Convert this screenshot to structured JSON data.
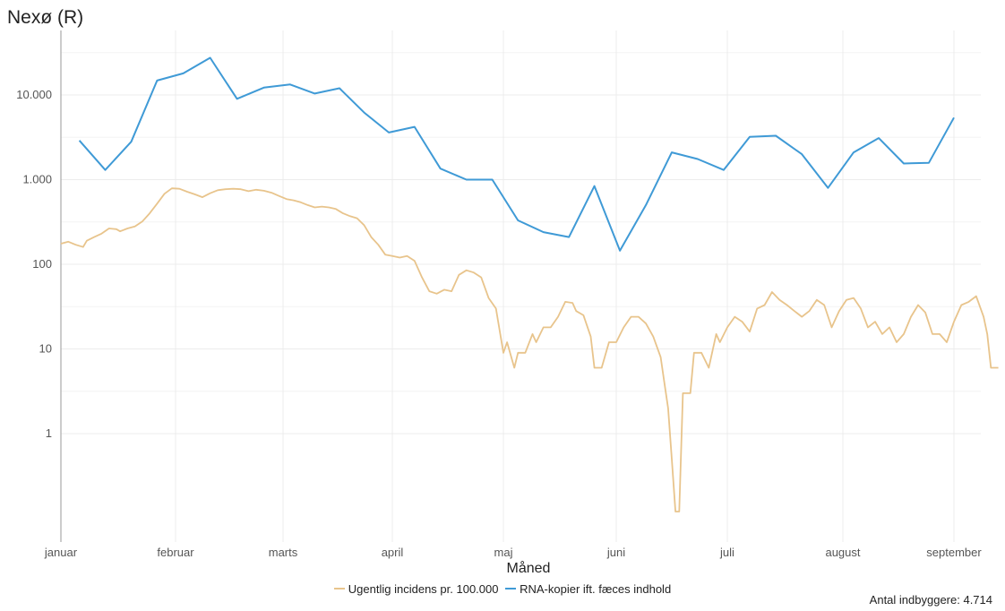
{
  "header": {
    "title": "Nexø (R)"
  },
  "footer": {
    "population": "Antal indbyggere: 4.714"
  },
  "colors": {
    "incidence": "#e8c48c",
    "rna": "#3f9ad6",
    "grid": "#ececec",
    "axis": "#9a9a9a"
  },
  "chart_data": {
    "type": "line",
    "title": "Nexø (R)",
    "xlabel": "Måned",
    "ylabel": "",
    "yscale": "log",
    "ylim": [
      0.1,
      40000
    ],
    "grid": true,
    "legend_position": "bottom",
    "x_ticks": [
      "januar",
      "februar",
      "marts",
      "april",
      "maj",
      "juni",
      "juli",
      "august",
      "september"
    ],
    "y_ticks": [
      {
        "value": 1,
        "label": "1"
      },
      {
        "value": 10,
        "label": "10"
      },
      {
        "value": 100,
        "label": "100"
      },
      {
        "value": 1000,
        "label": "1.000"
      },
      {
        "value": 10000,
        "label": "10.000"
      }
    ],
    "series": [
      {
        "name": "Ugentlig incidens pr. 100.000",
        "color": "#e8c48c",
        "points": [
          [
            "2021-01-01",
            175
          ],
          [
            "2021-01-03",
            185
          ],
          [
            "2021-01-05",
            170
          ],
          [
            "2021-01-07",
            160
          ],
          [
            "2021-01-08",
            190
          ],
          [
            "2021-01-10",
            210
          ],
          [
            "2021-01-12",
            230
          ],
          [
            "2021-01-14",
            265
          ],
          [
            "2021-01-16",
            260
          ],
          [
            "2021-01-17",
            245
          ],
          [
            "2021-01-19",
            265
          ],
          [
            "2021-01-21",
            280
          ],
          [
            "2021-01-23",
            320
          ],
          [
            "2021-01-25",
            400
          ],
          [
            "2021-01-27",
            520
          ],
          [
            "2021-01-29",
            680
          ],
          [
            "2021-01-31",
            790
          ],
          [
            "2021-02-02",
            780
          ],
          [
            "2021-02-04",
            720
          ],
          [
            "2021-02-06",
            670
          ],
          [
            "2021-02-08",
            620
          ],
          [
            "2021-02-10",
            690
          ],
          [
            "2021-02-12",
            750
          ],
          [
            "2021-02-14",
            770
          ],
          [
            "2021-02-16",
            780
          ],
          [
            "2021-02-18",
            770
          ],
          [
            "2021-02-20",
            730
          ],
          [
            "2021-02-22",
            760
          ],
          [
            "2021-02-24",
            740
          ],
          [
            "2021-02-26",
            700
          ],
          [
            "2021-02-28",
            640
          ],
          [
            "2021-03-02",
            590
          ],
          [
            "2021-03-04",
            570
          ],
          [
            "2021-03-06",
            540
          ],
          [
            "2021-03-08",
            500
          ],
          [
            "2021-03-10",
            470
          ],
          [
            "2021-03-12",
            480
          ],
          [
            "2021-03-14",
            470
          ],
          [
            "2021-03-16",
            450
          ],
          [
            "2021-03-18",
            400
          ],
          [
            "2021-03-20",
            370
          ],
          [
            "2021-03-22",
            350
          ],
          [
            "2021-03-24",
            290
          ],
          [
            "2021-03-26",
            210
          ],
          [
            "2021-03-28",
            170
          ],
          [
            "2021-03-30",
            130
          ],
          [
            "2021-04-01",
            125
          ],
          [
            "2021-04-03",
            120
          ],
          [
            "2021-04-05",
            125
          ],
          [
            "2021-04-07",
            110
          ],
          [
            "2021-04-09",
            70
          ],
          [
            "2021-04-11",
            48
          ],
          [
            "2021-04-13",
            45
          ],
          [
            "2021-04-15",
            50
          ],
          [
            "2021-04-17",
            48
          ],
          [
            "2021-04-19",
            75
          ],
          [
            "2021-04-21",
            85
          ],
          [
            "2021-04-23",
            80
          ],
          [
            "2021-04-25",
            70
          ],
          [
            "2021-04-27",
            40
          ],
          [
            "2021-04-29",
            30
          ],
          [
            "2021-05-01",
            9
          ],
          [
            "2021-05-02",
            12
          ],
          [
            "2021-05-04",
            6
          ],
          [
            "2021-05-05",
            9
          ],
          [
            "2021-05-07",
            9
          ],
          [
            "2021-05-09",
            15
          ],
          [
            "2021-05-10",
            12
          ],
          [
            "2021-05-12",
            18
          ],
          [
            "2021-05-14",
            18
          ],
          [
            "2021-05-16",
            24
          ],
          [
            "2021-05-18",
            36
          ],
          [
            "2021-05-20",
            35
          ],
          [
            "2021-05-21",
            28
          ],
          [
            "2021-05-23",
            25
          ],
          [
            "2021-05-25",
            14
          ],
          [
            "2021-05-26",
            6
          ],
          [
            "2021-05-28",
            6
          ],
          [
            "2021-05-30",
            12
          ],
          [
            "2021-06-01",
            12
          ],
          [
            "2021-06-03",
            18
          ],
          [
            "2021-06-05",
            24
          ],
          [
            "2021-06-07",
            24
          ],
          [
            "2021-06-09",
            20
          ],
          [
            "2021-06-11",
            14
          ],
          [
            "2021-06-13",
            8
          ],
          [
            "2021-06-14",
            4
          ],
          [
            "2021-06-15",
            2
          ],
          [
            "2021-06-16",
            0.5
          ],
          [
            "2021-06-17",
            0.12
          ],
          [
            "2021-06-18",
            0.12
          ],
          [
            "2021-06-19",
            3
          ],
          [
            "2021-06-21",
            3
          ],
          [
            "2021-06-22",
            9
          ],
          [
            "2021-06-24",
            9
          ],
          [
            "2021-06-26",
            6
          ],
          [
            "2021-06-28",
            15
          ],
          [
            "2021-06-29",
            12
          ],
          [
            "2021-07-01",
            18
          ],
          [
            "2021-07-03",
            24
          ],
          [
            "2021-07-05",
            21
          ],
          [
            "2021-07-07",
            16
          ],
          [
            "2021-07-09",
            30
          ],
          [
            "2021-07-11",
            33
          ],
          [
            "2021-07-13",
            47
          ],
          [
            "2021-07-15",
            38
          ],
          [
            "2021-07-17",
            33
          ],
          [
            "2021-07-19",
            28
          ],
          [
            "2021-07-21",
            24
          ],
          [
            "2021-07-23",
            28
          ],
          [
            "2021-07-25",
            38
          ],
          [
            "2021-07-27",
            33
          ],
          [
            "2021-07-29",
            18
          ],
          [
            "2021-07-31",
            28
          ],
          [
            "2021-08-02",
            38
          ],
          [
            "2021-08-04",
            40
          ],
          [
            "2021-08-06",
            30
          ],
          [
            "2021-08-08",
            18
          ],
          [
            "2021-08-10",
            21
          ],
          [
            "2021-08-12",
            15
          ],
          [
            "2021-08-14",
            18
          ],
          [
            "2021-08-16",
            12
          ],
          [
            "2021-08-18",
            15
          ],
          [
            "2021-08-20",
            24
          ],
          [
            "2021-08-22",
            33
          ],
          [
            "2021-08-24",
            27
          ],
          [
            "2021-08-26",
            15
          ],
          [
            "2021-08-28",
            15
          ],
          [
            "2021-08-30",
            12
          ],
          [
            "2021-09-01",
            21
          ],
          [
            "2021-09-03",
            33
          ],
          [
            "2021-09-05",
            36
          ],
          [
            "2021-09-07",
            42
          ],
          [
            "2021-09-09",
            24
          ],
          [
            "2021-09-10",
            15
          ],
          [
            "2021-09-11",
            6
          ],
          [
            "2021-09-13",
            6
          ]
        ]
      },
      {
        "name": "RNA-kopier ift. fæces indhold",
        "color": "#3f9ad6",
        "points": [
          [
            "2021-01-06",
            2900
          ],
          [
            "2021-01-13",
            1300
          ],
          [
            "2021-01-20",
            2800
          ],
          [
            "2021-01-27",
            14800
          ],
          [
            "2021-02-03",
            18000
          ],
          [
            "2021-02-10",
            27500
          ],
          [
            "2021-02-17",
            9000
          ],
          [
            "2021-02-24",
            12200
          ],
          [
            "2021-03-03",
            13300
          ],
          [
            "2021-03-10",
            10400
          ],
          [
            "2021-03-17",
            12000
          ],
          [
            "2021-03-24",
            6200
          ],
          [
            "2021-03-31",
            3600
          ],
          [
            "2021-04-07",
            4200
          ],
          [
            "2021-04-14",
            1350
          ],
          [
            "2021-04-21",
            1000
          ],
          [
            "2021-04-28",
            1000
          ],
          [
            "2021-05-05",
            330
          ],
          [
            "2021-05-12",
            240
          ],
          [
            "2021-05-19",
            210
          ],
          [
            "2021-05-26",
            840
          ],
          [
            "2021-06-02",
            145
          ],
          [
            "2021-06-09",
            500
          ],
          [
            "2021-06-16",
            2100
          ],
          [
            "2021-06-23",
            1750
          ],
          [
            "2021-06-30",
            1300
          ],
          [
            "2021-07-07",
            3200
          ],
          [
            "2021-07-14",
            3300
          ],
          [
            "2021-07-21",
            2000
          ],
          [
            "2021-07-28",
            800
          ],
          [
            "2021-08-04",
            2100
          ],
          [
            "2021-08-11",
            3100
          ],
          [
            "2021-08-18",
            1550
          ],
          [
            "2021-08-25",
            1580
          ],
          [
            "2021-09-01",
            5400
          ]
        ]
      }
    ]
  }
}
